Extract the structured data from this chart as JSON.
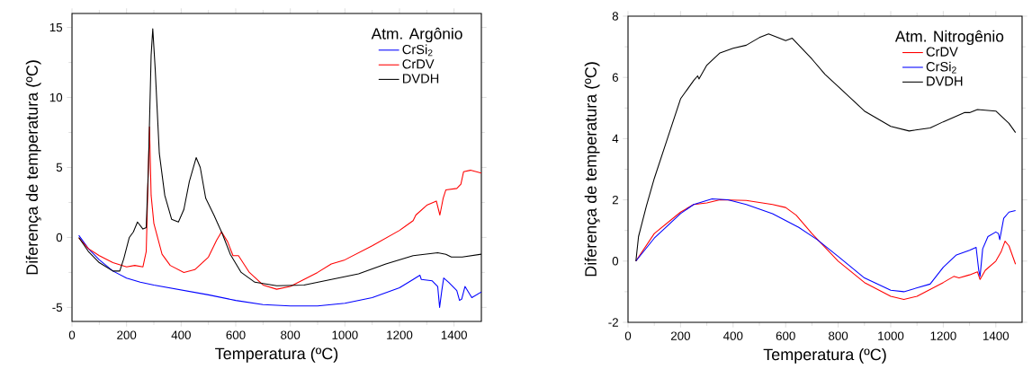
{
  "chart_data": [
    {
      "type": "line",
      "legend_title": "Atm. Argônio",
      "xlabel": "Temperatura (ºC)",
      "ylabel": "Diferença de temperatura (ºC)",
      "xlim": [
        0,
        1500
      ],
      "ylim": [
        -6,
        16
      ],
      "xticks": [
        0,
        200,
        400,
        600,
        800,
        1000,
        1200,
        1400
      ],
      "yticks": [
        -5,
        0,
        5,
        10,
        15
      ],
      "legend": "top right",
      "grid": false,
      "series": [
        {
          "name": "CrSi$_{2}$",
          "color": "#0000ff",
          "x": [
            25,
            60,
            100,
            150,
            200,
            250,
            300,
            400,
            500,
            600,
            700,
            800,
            900,
            1000,
            1100,
            1200,
            1250,
            1275,
            1280,
            1320,
            1340,
            1347,
            1355,
            1362,
            1380,
            1410,
            1420,
            1428,
            1440,
            1465,
            1500
          ],
          "values": [
            0.15,
            -0.8,
            -1.6,
            -2.4,
            -2.9,
            -3.2,
            -3.4,
            -3.75,
            -4.1,
            -4.5,
            -4.8,
            -4.9,
            -4.9,
            -4.7,
            -4.3,
            -3.6,
            -3.0,
            -2.7,
            -3.0,
            -3.1,
            -3.5,
            -5.0,
            -3.8,
            -2.9,
            -3.2,
            -3.8,
            -4.5,
            -4.4,
            -3.5,
            -4.3,
            -3.9
          ]
        },
        {
          "name": "CrDV",
          "color": "#ff0000",
          "x": [
            25,
            60,
            100,
            150,
            200,
            230,
            260,
            272,
            280,
            284,
            290,
            300,
            330,
            360,
            410,
            450,
            500,
            530,
            548,
            570,
            590,
            610,
            650,
            700,
            750,
            800,
            850,
            900,
            950,
            1000,
            1100,
            1200,
            1250,
            1260,
            1300,
            1335,
            1348,
            1360,
            1370,
            1410,
            1425,
            1435,
            1460,
            1500
          ],
          "values": [
            -0.05,
            -0.8,
            -1.3,
            -1.8,
            -2.1,
            -2.0,
            -2.1,
            -1.0,
            5,
            7.9,
            3,
            1,
            -1.2,
            -2.0,
            -2.5,
            -2.3,
            -1.4,
            -0.2,
            0.4,
            -0.3,
            -1.3,
            -1.3,
            -2.5,
            -3.4,
            -3.7,
            -3.5,
            -3.0,
            -2.5,
            -1.9,
            -1.6,
            -0.6,
            0.5,
            1.2,
            1.6,
            2.3,
            2.6,
            1.6,
            2.8,
            3.4,
            3.5,
            3.8,
            4.7,
            4.8,
            4.6
          ]
        },
        {
          "name": "DVDH",
          "color": "#000000",
          "x": [
            25,
            60,
            100,
            150,
            175,
            190,
            210,
            225,
            240,
            260,
            272,
            280,
            290,
            296,
            305,
            320,
            340,
            365,
            390,
            410,
            430,
            455,
            470,
            490,
            520,
            550,
            580,
            620,
            670,
            750,
            850,
            950,
            1050,
            1150,
            1250,
            1340,
            1370,
            1390,
            1430,
            1500
          ],
          "values": [
            0,
            -1.0,
            -1.8,
            -2.4,
            -2.4,
            -1.5,
            0,
            0.4,
            1.1,
            0.6,
            0.7,
            5,
            13,
            14.9,
            12,
            6,
            3,
            1.3,
            1.1,
            2.0,
            4.0,
            5.7,
            5.0,
            2.8,
            1.6,
            0.3,
            -1.2,
            -2.5,
            -3.2,
            -3.45,
            -3.4,
            -3.0,
            -2.6,
            -1.9,
            -1.3,
            -1.1,
            -1.2,
            -1.4,
            -1.4,
            -1.2
          ]
        }
      ]
    },
    {
      "type": "line",
      "legend_title": "Atm. Nitrogênio",
      "xlabel": "Temperatura (ºC)",
      "ylabel": "Diferença de temperatura (ºC)",
      "xlim": [
        0,
        1500
      ],
      "ylim": [
        -2,
        8
      ],
      "xticks": [
        0,
        200,
        400,
        600,
        800,
        1000,
        1200,
        1400
      ],
      "yticks": [
        -2,
        0,
        2,
        4,
        6,
        8
      ],
      "legend": "top right",
      "grid": false,
      "series": [
        {
          "name": "CrDV",
          "color": "#ff0000",
          "x": [
            30,
            100,
            200,
            250,
            300,
            350,
            450,
            550,
            600,
            640,
            700,
            800,
            900,
            1000,
            1050,
            1100,
            1200,
            1240,
            1260,
            1300,
            1330,
            1340,
            1360,
            1400,
            1420,
            1435,
            1450,
            1475
          ],
          "values": [
            0,
            0.9,
            1.6,
            1.85,
            1.9,
            2.0,
            1.98,
            1.85,
            1.75,
            1.5,
            0.9,
            0,
            -0.7,
            -1.15,
            -1.25,
            -1.15,
            -0.7,
            -0.5,
            -0.55,
            -0.45,
            -0.35,
            -0.6,
            -0.3,
            0,
            0.3,
            0.65,
            0.5,
            -0.1
          ]
        },
        {
          "name": "CrSi$_{2}$",
          "color": "#0000ff",
          "x": [
            30,
            100,
            200,
            250,
            320,
            380,
            450,
            550,
            650,
            720,
            800,
            900,
            1000,
            1050,
            1150,
            1200,
            1250,
            1300,
            1325,
            1335,
            1340,
            1350,
            1370,
            1400,
            1410,
            1415,
            1430,
            1450,
            1475
          ],
          "values": [
            0,
            0.75,
            1.55,
            1.85,
            2.03,
            2.0,
            1.85,
            1.55,
            1.1,
            0.7,
            0.15,
            -0.55,
            -0.95,
            -1.0,
            -0.75,
            -0.2,
            0.2,
            0.35,
            0.45,
            -0.3,
            -0.5,
            0.4,
            0.8,
            0.95,
            0.9,
            0.7,
            1.4,
            1.6,
            1.65
          ]
        },
        {
          "name": "DVDH",
          "color": "#000000",
          "x": [
            30,
            40,
            70,
            100,
            150,
            200,
            250,
            265,
            270,
            300,
            350,
            400,
            450,
            500,
            535,
            570,
            600,
            625,
            700,
            750,
            800,
            900,
            1000,
            1070,
            1150,
            1200,
            1280,
            1300,
            1330,
            1400,
            1450,
            1475
          ],
          "values": [
            0,
            0.8,
            1.8,
            2.7,
            4,
            5.3,
            5.9,
            6.05,
            5.95,
            6.4,
            6.8,
            6.95,
            7.05,
            7.3,
            7.42,
            7.3,
            7.2,
            7.28,
            6.6,
            6.1,
            5.7,
            4.9,
            4.4,
            4.25,
            4.35,
            4.55,
            4.85,
            4.85,
            4.95,
            4.9,
            4.5,
            4.2
          ]
        }
      ]
    }
  ]
}
